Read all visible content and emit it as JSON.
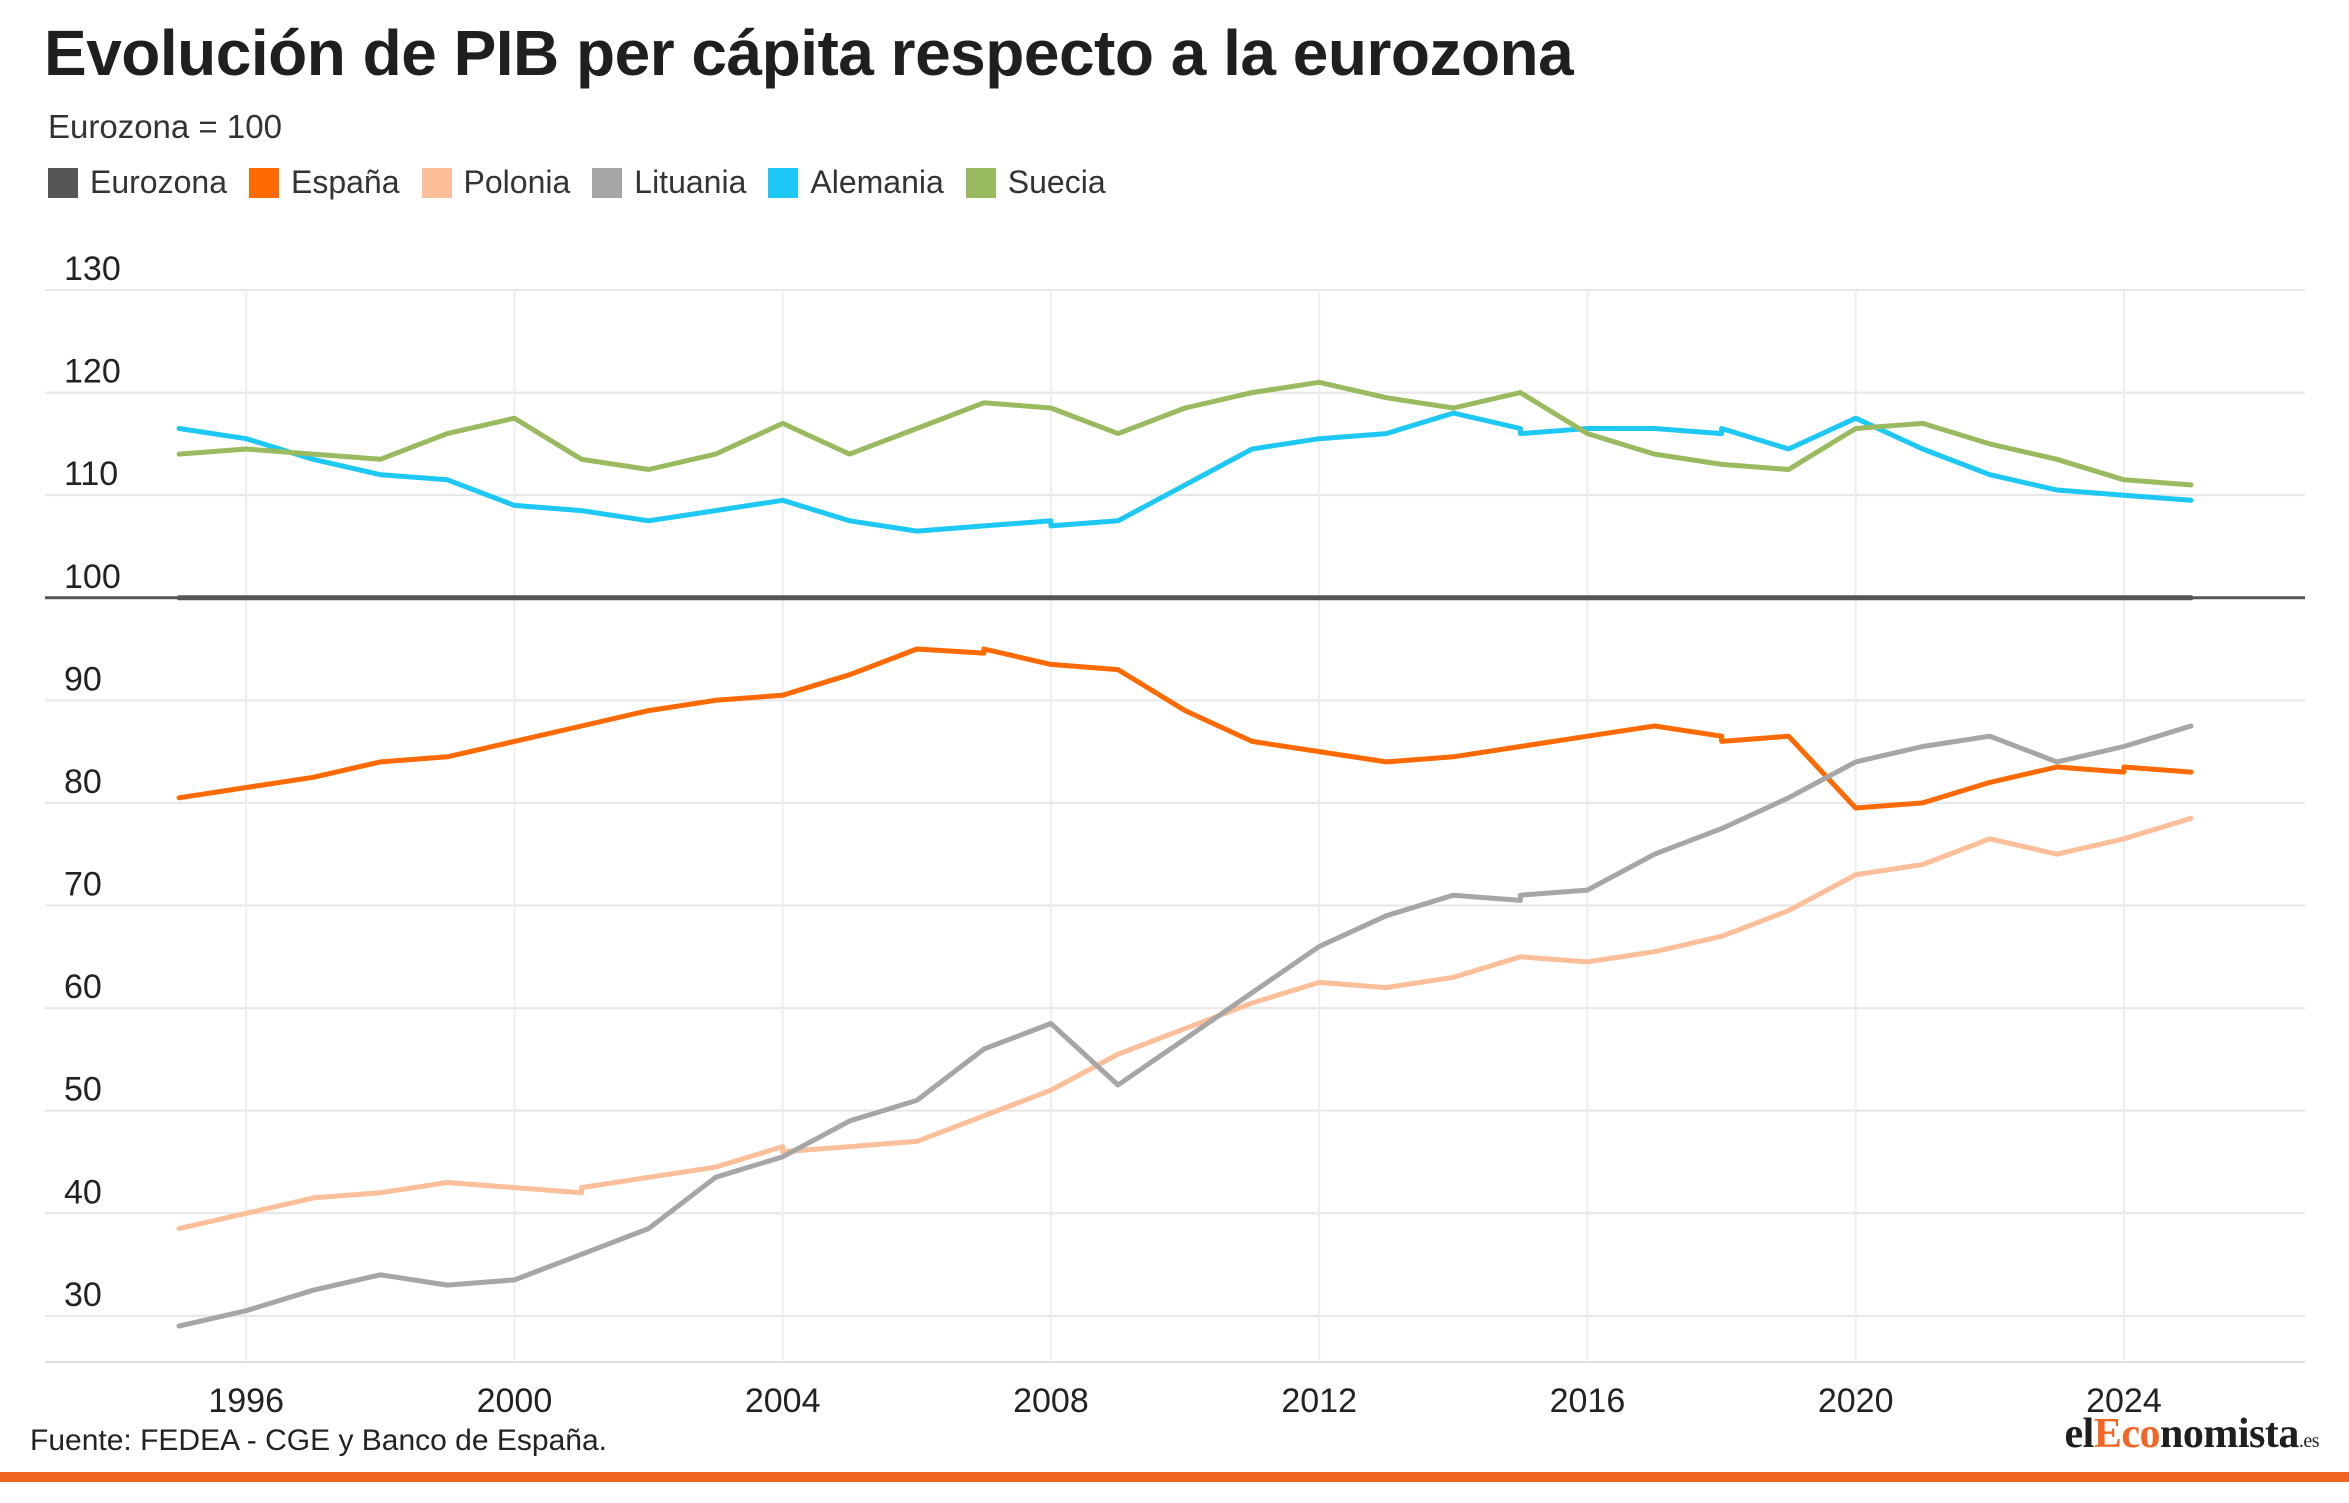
{
  "title": "Evolución de PIB per cápita respecto a la eurozona",
  "subtitle": "Eurozona = 100",
  "source": "Fuente: FEDEA - CGE y Banco de España.",
  "logo": {
    "prefix": "el",
    "accent": "Eco",
    "main": "nomista",
    "tld": ".es"
  },
  "colors": {
    "accent": "#f26522",
    "grid": "#e6e6e6"
  },
  "chart_data": {
    "type": "line",
    "title": "Evolución de PIB per cápita respecto a la eurozona",
    "subtitle": "Eurozona = 100",
    "xlabel": "",
    "ylabel": "",
    "xlim": [
      1993.0,
      2026.7
    ],
    "ylim": [
      25.5,
      130
    ],
    "y_ticks": [
      30,
      40,
      50,
      60,
      70,
      80,
      90,
      100,
      110,
      120,
      130
    ],
    "x_ticks": [
      1996,
      2000,
      2004,
      2008,
      2012,
      2016,
      2020,
      2024
    ],
    "grid": true,
    "legend_position": "top-left",
    "series": [
      {
        "name": "Eurozona",
        "color": "#555555",
        "points": [
          [
            1995,
            100
          ],
          [
            2025,
            100
          ]
        ]
      },
      {
        "name": "España",
        "color": "#ff6a00",
        "points": [
          [
            1995,
            80.5
          ],
          [
            1996,
            81.5
          ],
          [
            1997,
            82.5
          ],
          [
            1998,
            84
          ],
          [
            1999,
            84.5
          ],
          [
            2000,
            86
          ],
          [
            2001,
            87.5
          ],
          [
            2002,
            89
          ],
          [
            2003,
            90
          ],
          [
            2004,
            90.5
          ],
          [
            2005,
            92.5
          ],
          [
            2006,
            95
          ],
          [
            2007,
            94.6
          ],
          [
            2007,
            95
          ],
          [
            2008,
            93.5
          ],
          [
            2009,
            93
          ],
          [
            2010,
            89
          ],
          [
            2011,
            86
          ],
          [
            2012,
            85
          ],
          [
            2013,
            84
          ],
          [
            2014,
            84.5
          ],
          [
            2015,
            85.5
          ],
          [
            2016,
            86.5
          ],
          [
            2017,
            87.5
          ],
          [
            2018,
            86.5
          ],
          [
            2018,
            86
          ],
          [
            2019,
            86.5
          ],
          [
            2020,
            79.5
          ],
          [
            2021,
            80
          ],
          [
            2022,
            82
          ],
          [
            2023,
            83.5
          ],
          [
            2024,
            83
          ],
          [
            2024,
            83.5
          ],
          [
            2025,
            83
          ]
        ]
      },
      {
        "name": "Polonia",
        "color": "#fdbf9a",
        "points": [
          [
            1995,
            38.5
          ],
          [
            1996,
            40
          ],
          [
            1997,
            41.5
          ],
          [
            1998,
            42
          ],
          [
            1999,
            43
          ],
          [
            2000,
            42.5
          ],
          [
            2001,
            42
          ],
          [
            2001,
            42.5
          ],
          [
            2002,
            43.5
          ],
          [
            2003,
            44.5
          ],
          [
            2004,
            46.5
          ],
          [
            2004,
            46
          ],
          [
            2005,
            46.5
          ],
          [
            2006,
            47
          ],
          [
            2007,
            49.5
          ],
          [
            2008,
            52
          ],
          [
            2009,
            55.5
          ],
          [
            2010,
            58
          ],
          [
            2011,
            60.5
          ],
          [
            2012,
            62.5
          ],
          [
            2013,
            62
          ],
          [
            2014,
            63
          ],
          [
            2015,
            65
          ],
          [
            2016,
            64.5
          ],
          [
            2017,
            65.5
          ],
          [
            2018,
            67
          ],
          [
            2019,
            69.5
          ],
          [
            2020,
            73
          ],
          [
            2021,
            74
          ],
          [
            2022,
            76.5
          ],
          [
            2023,
            75
          ],
          [
            2024,
            76.5
          ],
          [
            2025,
            78.5
          ]
        ]
      },
      {
        "name": "Lituania",
        "color": "#a6a6a6",
        "points": [
          [
            1995,
            29
          ],
          [
            1996,
            30.5
          ],
          [
            1997,
            32.5
          ],
          [
            1998,
            34
          ],
          [
            1999,
            33
          ],
          [
            2000,
            33.5
          ],
          [
            2001,
            36
          ],
          [
            2002,
            38.5
          ],
          [
            2003,
            43.5
          ],
          [
            2004,
            45.5
          ],
          [
            2005,
            49
          ],
          [
            2006,
            51
          ],
          [
            2007,
            56
          ],
          [
            2008,
            58.5
          ],
          [
            2009,
            52.5
          ],
          [
            2010,
            57
          ],
          [
            2011,
            61.5
          ],
          [
            2012,
            66
          ],
          [
            2013,
            69
          ],
          [
            2014,
            71
          ],
          [
            2015,
            70.5
          ],
          [
            2015,
            71
          ],
          [
            2016,
            71.5
          ],
          [
            2017,
            75
          ],
          [
            2018,
            77.5
          ],
          [
            2019,
            80.5
          ],
          [
            2020,
            84
          ],
          [
            2021,
            85.5
          ],
          [
            2022,
            86.5
          ],
          [
            2023,
            84
          ],
          [
            2024,
            85.5
          ],
          [
            2025,
            87.5
          ]
        ]
      },
      {
        "name": "Alemania",
        "color": "#1ec8f5",
        "points": [
          [
            1995,
            116.5
          ],
          [
            1996,
            115.5
          ],
          [
            1997,
            113.5
          ],
          [
            1998,
            112
          ],
          [
            1999,
            111.5
          ],
          [
            2000,
            109
          ],
          [
            2001,
            108.5
          ],
          [
            2002,
            107.5
          ],
          [
            2003,
            108.5
          ],
          [
            2004,
            109.5
          ],
          [
            2005,
            107.5
          ],
          [
            2006,
            106.5
          ],
          [
            2007,
            107
          ],
          [
            2008,
            107.5
          ],
          [
            2008,
            107
          ],
          [
            2009,
            107.5
          ],
          [
            2010,
            111
          ],
          [
            2011,
            114.5
          ],
          [
            2012,
            115.5
          ],
          [
            2013,
            116
          ],
          [
            2014,
            118
          ],
          [
            2015,
            116.5
          ],
          [
            2015,
            116
          ],
          [
            2016,
            116.5
          ],
          [
            2017,
            116.5
          ],
          [
            2018,
            116
          ],
          [
            2018,
            116.5
          ],
          [
            2019,
            114.5
          ],
          [
            2020,
            117.5
          ],
          [
            2021,
            114.5
          ],
          [
            2022,
            112
          ],
          [
            2023,
            110.5
          ],
          [
            2024,
            110
          ],
          [
            2025,
            109.5
          ]
        ]
      },
      {
        "name": "Suecia",
        "color": "#9aba5f",
        "points": [
          [
            1995,
            114
          ],
          [
            1996,
            114.5
          ],
          [
            1997,
            114
          ],
          [
            1998,
            113.5
          ],
          [
            1999,
            116
          ],
          [
            2000,
            117.5
          ],
          [
            2001,
            113.5
          ],
          [
            2002,
            112.5
          ],
          [
            2003,
            114
          ],
          [
            2004,
            117
          ],
          [
            2005,
            114
          ],
          [
            2006,
            116.5
          ],
          [
            2007,
            119
          ],
          [
            2008,
            118.5
          ],
          [
            2009,
            116
          ],
          [
            2010,
            118.5
          ],
          [
            2011,
            120
          ],
          [
            2012,
            121
          ],
          [
            2013,
            119.5
          ],
          [
            2014,
            118.5
          ],
          [
            2015,
            120
          ],
          [
            2016,
            116
          ],
          [
            2017,
            114
          ],
          [
            2018,
            113
          ],
          [
            2019,
            112.5
          ],
          [
            2020,
            116.5
          ],
          [
            2021,
            117
          ],
          [
            2022,
            115
          ],
          [
            2023,
            113.5
          ],
          [
            2024,
            111.5
          ],
          [
            2025,
            111
          ]
        ]
      }
    ]
  }
}
